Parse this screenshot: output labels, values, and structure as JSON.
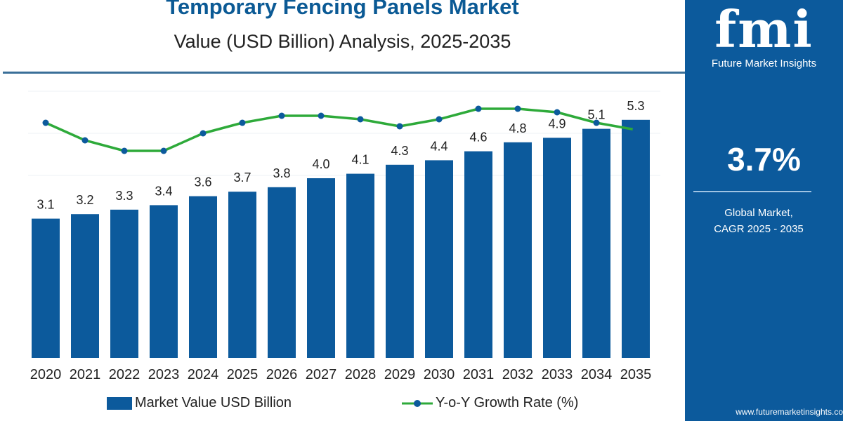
{
  "title": "Temporary Fencing Panels Market",
  "subtitle": "Value (USD Billion) Analysis, 2025-2035",
  "brand": {
    "logo_text": "fmi",
    "name": "Future Market Insights",
    "website": "www.futuremarketinsights.co"
  },
  "highlight": {
    "value": "3.7%",
    "label_line1": "Global Market,",
    "label_line2": "CAGR 2025 - 2035"
  },
  "colors": {
    "bar": "#0c5a9c",
    "line": "#2eaa3a",
    "marker": "#0c5a9c",
    "panel": "#0c5a9c"
  },
  "chart_data": {
    "type": "bar",
    "title": "Temporary Fencing Panels Market",
    "categories": [
      "2020",
      "2021",
      "2022",
      "2023",
      "2024",
      "2025",
      "2026",
      "2027",
      "2028",
      "2029",
      "2030",
      "2031",
      "2032",
      "2033",
      "2034",
      "2035"
    ],
    "series": [
      {
        "name": "Market Value USD Billion",
        "type": "bar",
        "values": [
          3.1,
          3.2,
          3.3,
          3.4,
          3.6,
          3.7,
          3.8,
          4.0,
          4.1,
          4.3,
          4.4,
          4.6,
          4.8,
          4.9,
          5.1,
          5.3
        ],
        "labels": [
          "3.1",
          "3.2",
          "3.3",
          "3.4",
          "3.6",
          "3.7",
          "3.8",
          "4.0",
          "4.1",
          "4.3",
          "4.4",
          "4.6",
          "4.8",
          "4.9",
          "5.1",
          "5.3"
        ]
      },
      {
        "name": "Y-o-Y Growth Rate (%)",
        "type": "line",
        "values": [
          3.7,
          3.2,
          2.9,
          2.9,
          3.4,
          3.7,
          3.9,
          3.9,
          3.8,
          3.6,
          3.8,
          4.1,
          4.1,
          4.0,
          3.7,
          3.5
        ]
      }
    ],
    "ylim": [
      0,
      5.5
    ],
    "grid": true,
    "legend": "bottom"
  }
}
